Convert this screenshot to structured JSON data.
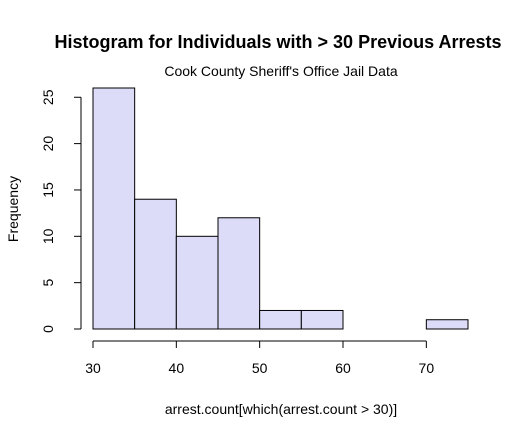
{
  "chart_data": {
    "type": "bar",
    "title": "Histogram for Individuals with > 30 Previous Arrests",
    "subtitle": "Cook County Sheriff's Office Jail Data",
    "xlabel": "arrest.count[which(arrest.count > 30)]",
    "ylabel": "Frequency",
    "bins": [
      {
        "start": 30,
        "end": 35,
        "count": 26
      },
      {
        "start": 35,
        "end": 40,
        "count": 14
      },
      {
        "start": 40,
        "end": 45,
        "count": 10
      },
      {
        "start": 45,
        "end": 50,
        "count": 12
      },
      {
        "start": 50,
        "end": 55,
        "count": 2
      },
      {
        "start": 55,
        "end": 60,
        "count": 2
      },
      {
        "start": 60,
        "end": 65,
        "count": 0
      },
      {
        "start": 65,
        "end": 70,
        "count": 0
      },
      {
        "start": 70,
        "end": 75,
        "count": 1
      }
    ],
    "xlim": [
      30,
      75
    ],
    "ylim": [
      0,
      26
    ],
    "xticks": [
      30,
      40,
      50,
      60,
      70
    ],
    "yticks": [
      0,
      5,
      10,
      15,
      20,
      25
    ],
    "bar_color": "#dcdcf8",
    "grid": false,
    "legend": "none"
  }
}
